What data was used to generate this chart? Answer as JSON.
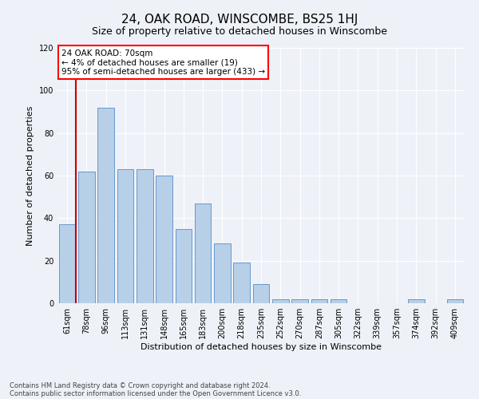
{
  "title": "24, OAK ROAD, WINSCOMBE, BS25 1HJ",
  "subtitle": "Size of property relative to detached houses in Winscombe",
  "xlabel": "Distribution of detached houses by size in Winscombe",
  "ylabel": "Number of detached properties",
  "footer_line1": "Contains HM Land Registry data © Crown copyright and database right 2024.",
  "footer_line2": "Contains public sector information licensed under the Open Government Licence v3.0.",
  "annotation_title": "24 OAK ROAD: 70sqm",
  "annotation_line1": "← 4% of detached houses are smaller (19)",
  "annotation_line2": "95% of semi-detached houses are larger (433) →",
  "bar_color": "#b8cfe8",
  "bar_edge_color": "#6699cc",
  "highlight_line_color": "#cc0000",
  "categories": [
    "61sqm",
    "78sqm",
    "96sqm",
    "113sqm",
    "131sqm",
    "148sqm",
    "165sqm",
    "183sqm",
    "200sqm",
    "218sqm",
    "235sqm",
    "252sqm",
    "270sqm",
    "287sqm",
    "305sqm",
    "322sqm",
    "339sqm",
    "357sqm",
    "374sqm",
    "392sqm",
    "409sqm"
  ],
  "values": [
    37,
    62,
    92,
    63,
    63,
    60,
    35,
    47,
    28,
    19,
    9,
    2,
    2,
    2,
    2,
    0,
    0,
    0,
    2,
    0,
    2
  ],
  "ylim": [
    0,
    120
  ],
  "yticks": [
    0,
    20,
    40,
    60,
    80,
    100,
    120
  ],
  "bg_color": "#eef2f8",
  "grid_color": "#ffffff",
  "title_fontsize": 11,
  "subtitle_fontsize": 9,
  "ylabel_fontsize": 8,
  "xlabel_fontsize": 8,
  "tick_fontsize": 7,
  "ann_fontsize": 7.5,
  "footer_fontsize": 6
}
